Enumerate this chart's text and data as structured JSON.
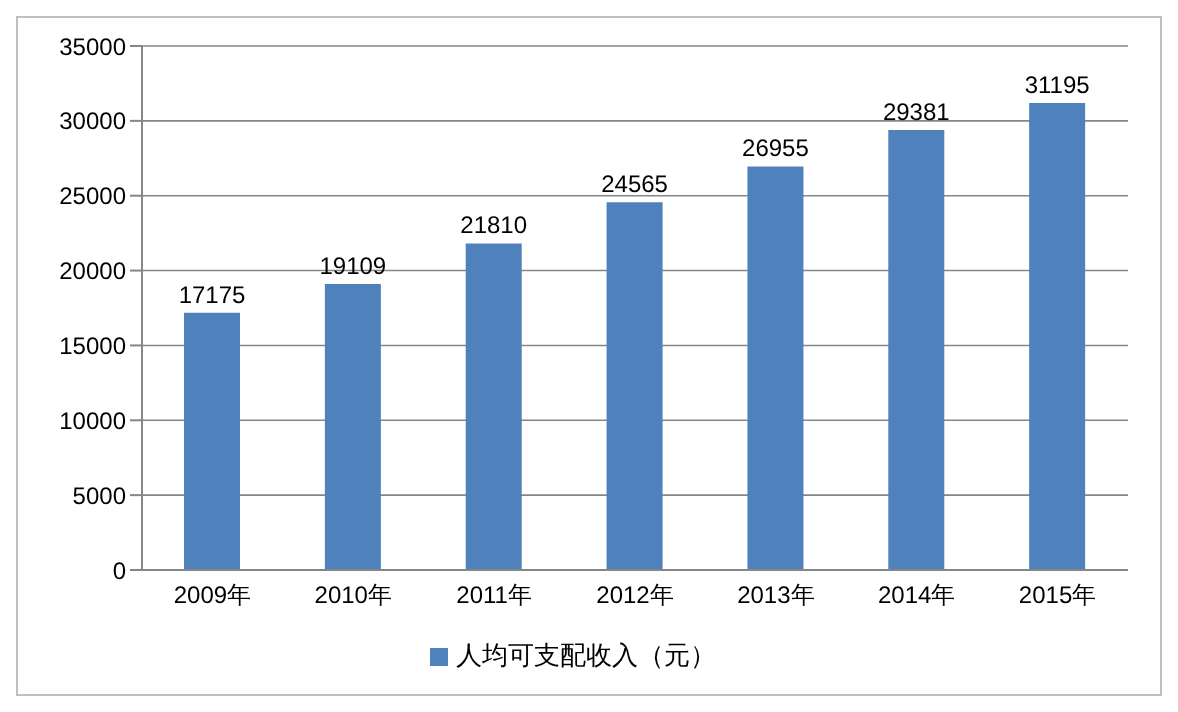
{
  "chart_data": {
    "type": "bar",
    "categories": [
      "2009年",
      "2010年",
      "2011年",
      "2012年",
      "2013年",
      "2014年",
      "2015年"
    ],
    "series": [
      {
        "name": "人均可支配收入（元）",
        "color": "#4f81bd",
        "values": [
          17175,
          19109,
          21810,
          24565,
          26955,
          29381,
          31195
        ]
      }
    ],
    "ylim": [
      0,
      35000
    ],
    "yticks": [
      0,
      5000,
      10000,
      15000,
      20000,
      25000,
      30000,
      35000
    ],
    "grid": "y",
    "legend": "bottom",
    "data_labels": true
  }
}
